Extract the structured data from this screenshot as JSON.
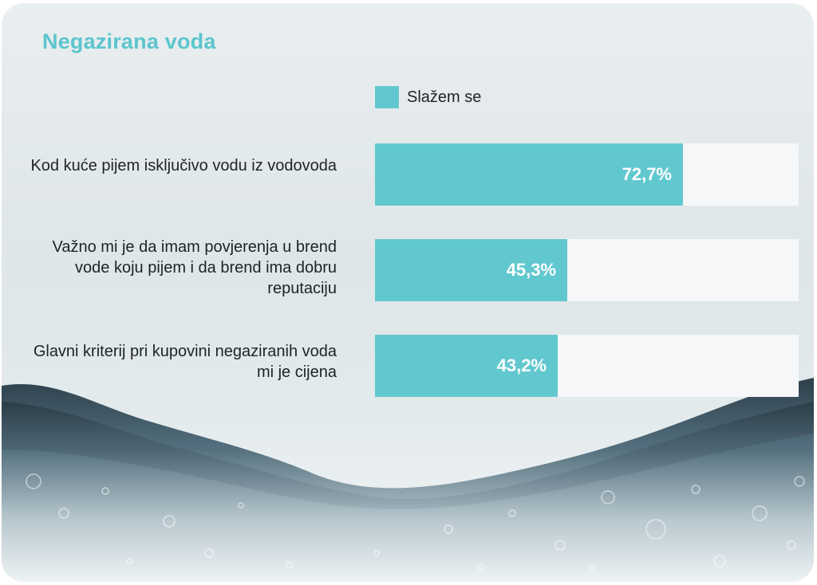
{
  "chart_data": {
    "type": "bar",
    "orientation": "horizontal",
    "title": "Negazirana voda",
    "legend": "top",
    "categories": [
      "Kod kuće pijem isključivo vodu iz vodovoda",
      "Važno mi je da imam povjerenja u brend vode koju pijem i da brend ima dobru reputaciju",
      "Glavni kriterij pri kupovini negaziranih voda mi je cijena"
    ],
    "series": [
      {
        "name": "Slažem se",
        "values": [
          72.7,
          45.3,
          43.2
        ],
        "labels": [
          "72,7%",
          "45,3%",
          "43,2%"
        ]
      }
    ],
    "xlim": [
      0,
      100
    ],
    "grid": false
  },
  "colors": {
    "accent": "#62c8cf",
    "title": "#5cc5cd",
    "track": "#f5f7f8"
  }
}
